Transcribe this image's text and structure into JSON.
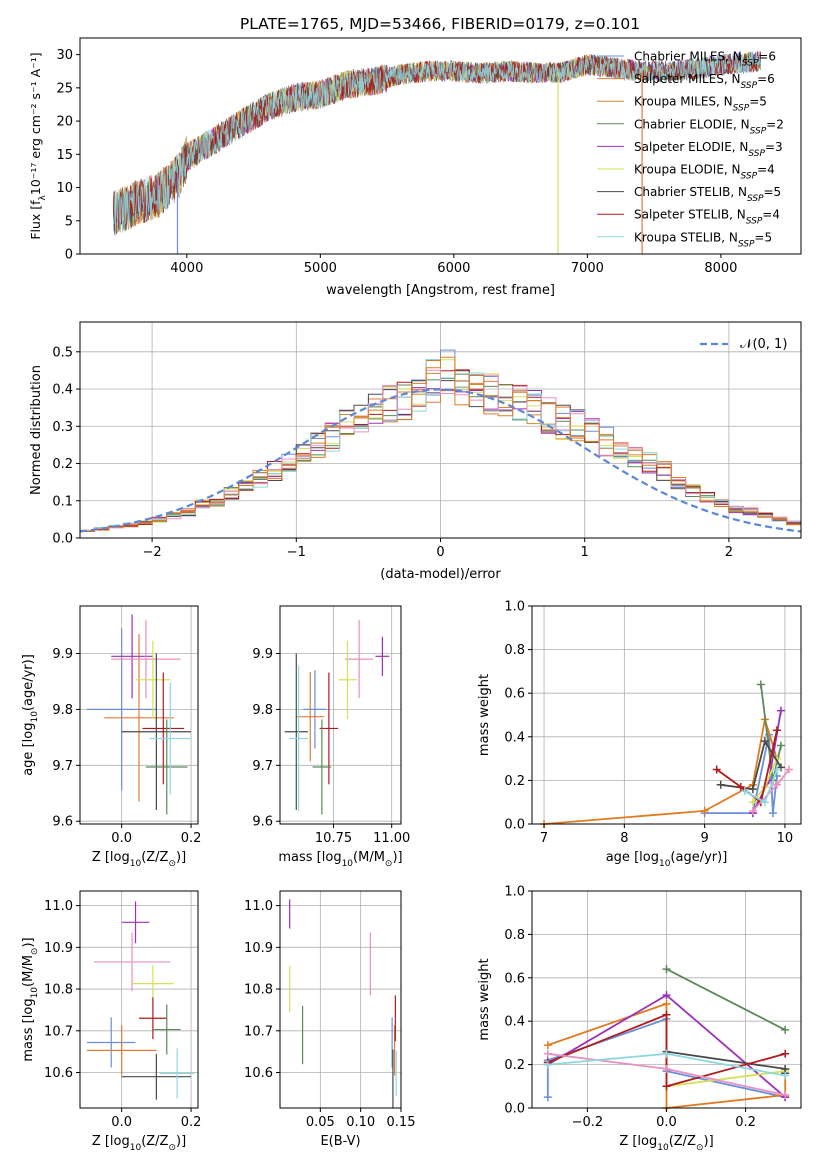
{
  "figure_title": "PLATE=1765, MJD=53466, FIBERID=0179, z=0.101",
  "colors": {
    "Chabrier MILES": "#6a8fd8",
    "Salpeter MILES": "#e07b39",
    "Kroupa MILES": "#d08a2e",
    "Chabrier ELODIE": "#5a8a5a",
    "Salpeter ELODIE": "#9b30b8",
    "Kroupa ELODIE": "#d6e05a",
    "Chabrier STELIB": "#4a4a4a",
    "Salpeter STELIB": "#b01c1c",
    "Kroupa STELIB": "#8fd8e0",
    "Pink": "#e890c0",
    "Orange": "#e07b20"
  },
  "chart_data": [
    {
      "id": "spectrum",
      "type": "line",
      "title": "PLATE=1765, MJD=53466, FIBERID=0179, z=0.101",
      "xlabel": "wavelength [Angstrom, rest frame]",
      "ylabel_main": "Flux [f",
      "ylabel_sub": "λ",
      "ylabel_rest": "10⁻¹⁷ erg cm⁻² s⁻¹ A⁻¹]",
      "xlim": [
        3200,
        8600
      ],
      "ylim": [
        0,
        32.5
      ],
      "xticks": [
        "4000",
        "5000",
        "6000",
        "7000",
        "8000"
      ],
      "xtick_values": [
        4000,
        5000,
        6000,
        7000,
        8000
      ],
      "yticks": [
        "0",
        "5",
        "10",
        "15",
        "20",
        "25",
        "30"
      ],
      "ytick_values": [
        0,
        5,
        10,
        15,
        20,
        25,
        30
      ],
      "grid": false,
      "legend_placement": "upper-right",
      "continuum": {
        "x": [
          3450,
          3600,
          3800,
          3950,
          4000,
          4200,
          4400,
          4600,
          4800,
          5000,
          5200,
          5400,
          5600,
          5800,
          6000,
          6200,
          6400,
          6600,
          6800,
          7000,
          7200,
          7400,
          7600,
          7800,
          8000,
          8300
        ],
        "y": [
          6,
          7.5,
          9,
          12,
          14.5,
          17,
          19.5,
          22,
          23.5,
          24,
          25.5,
          26,
          27,
          27.5,
          27.5,
          27.2,
          27.5,
          27.3,
          27.3,
          28.5,
          28,
          27.5,
          27.5,
          27.8,
          28.5,
          29
        ]
      },
      "drops": [
        {
          "x": 3930,
          "series": "Chabrier MILES"
        },
        {
          "x": 6780,
          "series": "Kroupa ELODIE"
        },
        {
          "x": 7410,
          "series": "Salpeter MILES"
        }
      ],
      "series": [
        {
          "name": "Chabrier MILES",
          "label": "Chabrier MILES, N",
          "sub": "SSP",
          "eq": "=6",
          "color": "#6a8fd8"
        },
        {
          "name": "Salpeter MILES",
          "label": "Salpeter MILES, N",
          "sub": "SSP",
          "eq": "=6",
          "color": "#e07b39"
        },
        {
          "name": "Kroupa MILES",
          "label": "Kroupa MILES, N",
          "sub": "SSP",
          "eq": "=5",
          "color": "#d08a2e"
        },
        {
          "name": "Chabrier ELODIE",
          "label": "Chabrier ELODIE, N",
          "sub": "SSP",
          "eq": "=2",
          "color": "#5a8a5a"
        },
        {
          "name": "Salpeter ELODIE",
          "label": "Salpeter ELODIE, N",
          "sub": "SSP",
          "eq": "=3",
          "color": "#9b30b8"
        },
        {
          "name": "Kroupa ELODIE",
          "label": "Kroupa ELODIE, N",
          "sub": "SSP",
          "eq": "=4",
          "color": "#d6e05a"
        },
        {
          "name": "Chabrier STELIB",
          "label": "Chabrier STELIB, N",
          "sub": "SSP",
          "eq": "=5",
          "color": "#4a4a4a"
        },
        {
          "name": "Salpeter STELIB",
          "label": "Salpeter STELIB, N",
          "sub": "SSP",
          "eq": "=4",
          "color": "#b01c1c"
        },
        {
          "name": "Kroupa STELIB",
          "label": "Kroupa STELIB, N",
          "sub": "SSP",
          "eq": "=5",
          "color": "#8fd8e0"
        }
      ]
    },
    {
      "id": "residuals",
      "type": "step-histogram",
      "xlabel": "(data-model)/error",
      "ylabel": "Normed distribution",
      "xlim": [
        -2.5,
        2.5
      ],
      "ylim": [
        0,
        0.58
      ],
      "xticks": [
        "−2",
        "−1",
        "0",
        "1",
        "2"
      ],
      "xtick_values": [
        -2,
        -1,
        0,
        1,
        2
      ],
      "yticks": [
        "0.0",
        "0.1",
        "0.2",
        "0.3",
        "0.4",
        "0.5"
      ],
      "ytick_values": [
        0,
        0.1,
        0.2,
        0.3,
        0.4,
        0.5
      ],
      "grid": true,
      "legend": "𝒩(0, 1)",
      "legend_placement": "upper-right",
      "bin_width": 0.1,
      "bin_start": -2.5,
      "base_density": [
        0.02,
        0.025,
        0.03,
        0.035,
        0.04,
        0.05,
        0.06,
        0.07,
        0.09,
        0.1,
        0.12,
        0.14,
        0.16,
        0.18,
        0.2,
        0.22,
        0.25,
        0.27,
        0.3,
        0.32,
        0.34,
        0.36,
        0.37,
        0.39,
        0.42,
        0.44,
        0.42,
        0.4,
        0.39,
        0.38,
        0.37,
        0.35,
        0.33,
        0.31,
        0.3,
        0.28,
        0.26,
        0.24,
        0.22,
        0.2,
        0.18,
        0.15,
        0.13,
        0.11,
        0.09,
        0.08,
        0.07,
        0.06,
        0.05,
        0.04
      ]
    },
    {
      "id": "age-vs-Z",
      "type": "errorbar",
      "xlabel_main": "Z [log",
      "xlabel_sub": "10",
      "xlabel_rest": "(Z/Z",
      "xlabel_end": ")]",
      "ylabel_main": "age  [log",
      "ylabel_sub": "10",
      "ylabel_rest": "(age/yr)]",
      "xlim": [
        -0.12,
        0.22
      ],
      "ylim": [
        9.595,
        9.985
      ],
      "xticks": [
        "0.0",
        "0.2"
      ],
      "xtick_values": [
        0,
        0.2
      ],
      "yticks": [
        "9.6",
        "9.7",
        "9.8",
        "9.9"
      ],
      "ytick_values": [
        9.6,
        9.7,
        9.8,
        9.9
      ],
      "points": [
        {
          "x": 0.0,
          "y": 9.8,
          "xerr": 0.1,
          "yerr": 0.145,
          "color": "#6a8fd8"
        },
        {
          "x": 0.05,
          "y": 9.785,
          "xerr": 0.1,
          "yerr": 0.15,
          "color": "#e07b39"
        },
        {
          "x": 0.03,
          "y": 9.895,
          "xerr": 0.06,
          "yerr": 0.075,
          "color": "#9b30b8"
        },
        {
          "x": 0.07,
          "y": 9.89,
          "xerr": 0.1,
          "yerr": 0.07,
          "color": "#e890c0"
        },
        {
          "x": 0.09,
          "y": 9.853,
          "xerr": 0.05,
          "yerr": 0.07,
          "color": "#d6e05a"
        },
        {
          "x": 0.1,
          "y": 9.76,
          "xerr": 0.1,
          "yerr": 0.14,
          "color": "#4a4a4a"
        },
        {
          "x": 0.12,
          "y": 9.766,
          "xerr": 0.06,
          "yerr": 0.1,
          "color": "#b01c1c"
        },
        {
          "x": 0.13,
          "y": 9.697,
          "xerr": 0.06,
          "yerr": 0.085,
          "color": "#5a8a5a"
        },
        {
          "x": 0.14,
          "y": 9.748,
          "xerr": 0.06,
          "yerr": 0.1,
          "color": "#8fd8e0"
        }
      ]
    },
    {
      "id": "age-vs-mass",
      "type": "errorbar",
      "xlabel_main": "mass [log",
      "xlabel_sub": "10",
      "xlabel_rest": "(M/M",
      "xlabel_end": ")]",
      "xlim": [
        10.52,
        11.04
      ],
      "ylim": [
        9.595,
        9.985
      ],
      "xticks": [
        "10.75",
        "11.00"
      ],
      "xtick_values": [
        10.75,
        11.0
      ],
      "yticks": [
        "9.6",
        "9.7",
        "9.8",
        "9.9"
      ],
      "ytick_values": [
        9.6,
        9.7,
        9.8,
        9.9
      ],
      "points": [
        {
          "x": 10.67,
          "y": 9.8,
          "xerr": 0.05,
          "yerr": 0.07,
          "color": "#6a8fd8"
        },
        {
          "x": 10.65,
          "y": 9.787,
          "xerr": 0.06,
          "yerr": 0.08,
          "color": "#e07b39"
        },
        {
          "x": 10.96,
          "y": 9.895,
          "xerr": 0.03,
          "yerr": 0.035,
          "color": "#9b30b8"
        },
        {
          "x": 10.86,
          "y": 9.89,
          "xerr": 0.06,
          "yerr": 0.07,
          "color": "#e890c0"
        },
        {
          "x": 10.81,
          "y": 9.853,
          "xerr": 0.04,
          "yerr": 0.07,
          "color": "#d6e05a"
        },
        {
          "x": 10.59,
          "y": 9.76,
          "xerr": 0.05,
          "yerr": 0.14,
          "color": "#4a4a4a"
        },
        {
          "x": 10.73,
          "y": 9.766,
          "xerr": 0.04,
          "yerr": 0.1,
          "color": "#b01c1c"
        },
        {
          "x": 10.7,
          "y": 9.697,
          "xerr": 0.04,
          "yerr": 0.085,
          "color": "#5a8a5a"
        },
        {
          "x": 10.6,
          "y": 9.748,
          "xerr": 0.04,
          "yerr": 0.13,
          "color": "#8fd8e0"
        }
      ]
    },
    {
      "id": "massweight-vs-age",
      "type": "line",
      "xlabel_main": "age  [log",
      "xlabel_sub": "10",
      "xlabel_rest": "(age/yr)]",
      "ylabel": "mass weight",
      "xlim": [
        6.85,
        10.2
      ],
      "ylim": [
        0,
        1
      ],
      "xticks": [
        "7",
        "8",
        "9",
        "10"
      ],
      "xtick_values": [
        7,
        8,
        9,
        10
      ],
      "yticks": [
        "0.0",
        "0.2",
        "0.4",
        "0.6",
        "0.8",
        "1.0"
      ],
      "ytick_values": [
        0,
        0.2,
        0.4,
        0.6,
        0.8,
        1.0
      ],
      "grid": true,
      "series": [
        {
          "color": "#6a8fd8",
          "x": [
            9.0,
            9.6,
            9.8,
            9.85,
            9.9
          ],
          "y": [
            0.05,
            0.05,
            0.41,
            0.05,
            0.22
          ]
        },
        {
          "color": "#e07b20",
          "x": [
            7.0,
            9.0,
            9.6,
            9.75,
            9.9
          ],
          "y": [
            0.0,
            0.06,
            0.18,
            0.48,
            0.3
          ]
        },
        {
          "color": "#5a8a5a",
          "x": [
            9.7,
            9.85,
            9.95
          ],
          "y": [
            0.64,
            0.2,
            0.36
          ]
        },
        {
          "color": "#9b30b8",
          "x": [
            9.6,
            9.8,
            9.95
          ],
          "y": [
            0.05,
            0.2,
            0.52
          ]
        },
        {
          "color": "#d6e05a",
          "x": [
            9.6,
            9.75,
            9.9
          ],
          "y": [
            0.1,
            0.17,
            0.3
          ]
        },
        {
          "color": "#4a4a4a",
          "x": [
            9.2,
            9.6,
            9.75,
            9.95
          ],
          "y": [
            0.18,
            0.16,
            0.38,
            0.26
          ]
        },
        {
          "color": "#b01c1c",
          "x": [
            9.15,
            9.45,
            9.7,
            9.9
          ],
          "y": [
            0.25,
            0.17,
            0.1,
            0.43
          ]
        },
        {
          "color": "#e890c0",
          "x": [
            9.6,
            9.9,
            10.05
          ],
          "y": [
            0.06,
            0.18,
            0.25
          ]
        },
        {
          "color": "#8fd8e0",
          "x": [
            9.5,
            9.75,
            9.9
          ],
          "y": [
            0.15,
            0.1,
            0.25
          ]
        }
      ]
    },
    {
      "id": "mass-vs-Z",
      "type": "errorbar",
      "xlabel_main": "Z [log",
      "xlabel_sub": "10",
      "xlabel_rest": "(Z/Z",
      "xlabel_end": ")]",
      "ylabel_main": "mass [log",
      "ylabel_sub": "10",
      "ylabel_rest": "(M/M",
      "ylabel_end": ")]",
      "xlim": [
        -0.12,
        0.22
      ],
      "ylim": [
        10.515,
        11.035
      ],
      "xticks": [
        "0.0",
        "0.2"
      ],
      "xtick_values": [
        0,
        0.2
      ],
      "yticks": [
        "10.6",
        "10.7",
        "10.8",
        "10.9",
        "11.0"
      ],
      "ytick_values": [
        10.6,
        10.7,
        10.8,
        10.9,
        11.0
      ],
      "points": [
        {
          "x": -0.03,
          "y": 10.672,
          "xerr": 0.07,
          "yerr": 0.06,
          "color": "#6a8fd8"
        },
        {
          "x": 0.0,
          "y": 10.653,
          "xerr": 0.1,
          "yerr": 0.06,
          "color": "#e07b39"
        },
        {
          "x": 0.04,
          "y": 10.96,
          "xerr": 0.04,
          "yerr": 0.05,
          "color": "#9b30b8"
        },
        {
          "x": 0.03,
          "y": 10.865,
          "xerr": 0.11,
          "yerr": 0.07,
          "color": "#e890c0"
        },
        {
          "x": 0.09,
          "y": 10.813,
          "xerr": 0.06,
          "yerr": 0.045,
          "color": "#d6e05a"
        },
        {
          "x": 0.1,
          "y": 10.59,
          "xerr": 0.1,
          "yerr": 0.055,
          "color": "#4a4a4a"
        },
        {
          "x": 0.09,
          "y": 10.73,
          "xerr": 0.04,
          "yerr": 0.05,
          "color": "#b01c1c"
        },
        {
          "x": 0.13,
          "y": 10.703,
          "xerr": 0.04,
          "yerr": 0.06,
          "color": "#5a8a5a"
        },
        {
          "x": 0.16,
          "y": 10.598,
          "xerr": 0.05,
          "yerr": 0.06,
          "color": "#8fd8e0"
        }
      ]
    },
    {
      "id": "mass-vs-EBV",
      "type": "errorbar",
      "xlabel": "E(B-V)",
      "xlim": [
        0.0,
        0.15
      ],
      "ylim": [
        10.515,
        11.035
      ],
      "xticks": [
        "0.05",
        "0.10",
        "0.15"
      ],
      "xtick_values": [
        0.05,
        0.1,
        0.15
      ],
      "yticks": [
        "10.6",
        "10.7",
        "10.8",
        "10.9",
        "11.0"
      ],
      "ytick_values": [
        10.6,
        10.7,
        10.8,
        10.9,
        11.0
      ],
      "points": [
        {
          "x": 0.139,
          "y": 10.672,
          "xerr": 0,
          "yerr": 0.06,
          "color": "#6a8fd8"
        },
        {
          "x": 0.142,
          "y": 10.653,
          "xerr": 0,
          "yerr": 0.06,
          "color": "#e07b39"
        },
        {
          "x": 0.012,
          "y": 10.98,
          "xerr": 0,
          "yerr": 0.035,
          "color": "#9b30b8"
        },
        {
          "x": 0.112,
          "y": 10.86,
          "xerr": 0,
          "yerr": 0.075,
          "color": "#e890c0"
        },
        {
          "x": 0.012,
          "y": 10.8,
          "xerr": 0,
          "yerr": 0.055,
          "color": "#d6e05a"
        },
        {
          "x": 0.14,
          "y": 10.585,
          "xerr": 0,
          "yerr": 0.07,
          "color": "#4a4a4a"
        },
        {
          "x": 0.143,
          "y": 10.73,
          "xerr": 0,
          "yerr": 0.055,
          "color": "#b01c1c"
        },
        {
          "x": 0.028,
          "y": 10.69,
          "xerr": 0,
          "yerr": 0.07,
          "color": "#5a8a5a"
        },
        {
          "x": 0.144,
          "y": 10.598,
          "xerr": 0,
          "yerr": 0.055,
          "color": "#8fd8e0"
        }
      ]
    },
    {
      "id": "massweight-vs-Z",
      "type": "line",
      "xlabel_main": "Z [log",
      "xlabel_sub": "10",
      "xlabel_rest": "(Z/Z",
      "xlabel_end": ")]",
      "ylabel": "mass weight",
      "xlim": [
        -0.34,
        0.34
      ],
      "ylim": [
        0,
        1
      ],
      "xticks": [
        "−0.2",
        "0.0",
        "0.2"
      ],
      "xtick_values": [
        -0.2,
        0.0,
        0.2
      ],
      "yticks": [
        "0.0",
        "0.2",
        "0.4",
        "0.6",
        "0.8",
        "1.0"
      ],
      "ytick_values": [
        0,
        0.2,
        0.4,
        0.6,
        0.8,
        1.0
      ],
      "grid": true,
      "series": [
        {
          "color": "#6a8fd8",
          "x": [
            -0.3,
            -0.3,
            0.0,
            0.0,
            0.3
          ],
          "y": [
            0.05,
            0.22,
            0.41,
            0.17,
            0.05
          ]
        },
        {
          "color": "#e07b20",
          "x": [
            -0.3,
            0.0,
            0.0,
            0.3,
            0.3
          ],
          "y": [
            0.29,
            0.48,
            0.0,
            0.06,
            0.18
          ]
        },
        {
          "color": "#5a8a5a",
          "x": [
            0.0,
            0.3
          ],
          "y": [
            0.64,
            0.36
          ]
        },
        {
          "color": "#9b30b8",
          "x": [
            -0.3,
            0.0,
            0.3
          ],
          "y": [
            0.2,
            0.52,
            0.05
          ]
        },
        {
          "color": "#d6e05a",
          "x": [
            0.0,
            0.3
          ],
          "y": [
            0.1,
            0.17
          ]
        },
        {
          "color": "#4a4a4a",
          "x": [
            0.0,
            0.3,
            0.3
          ],
          "y": [
            0.26,
            0.18,
            0.16
          ]
        },
        {
          "color": "#b01c1c",
          "x": [
            -0.3,
            0.0,
            0.0,
            0.3
          ],
          "y": [
            0.21,
            0.43,
            0.1,
            0.25
          ]
        },
        {
          "color": "#e890c0",
          "x": [
            -0.3,
            0.0,
            0.3
          ],
          "y": [
            0.25,
            0.18,
            0.06
          ]
        },
        {
          "color": "#8fd8e0",
          "x": [
            -0.3,
            0.0,
            0.3
          ],
          "y": [
            0.2,
            0.25,
            0.15
          ]
        }
      ]
    }
  ]
}
